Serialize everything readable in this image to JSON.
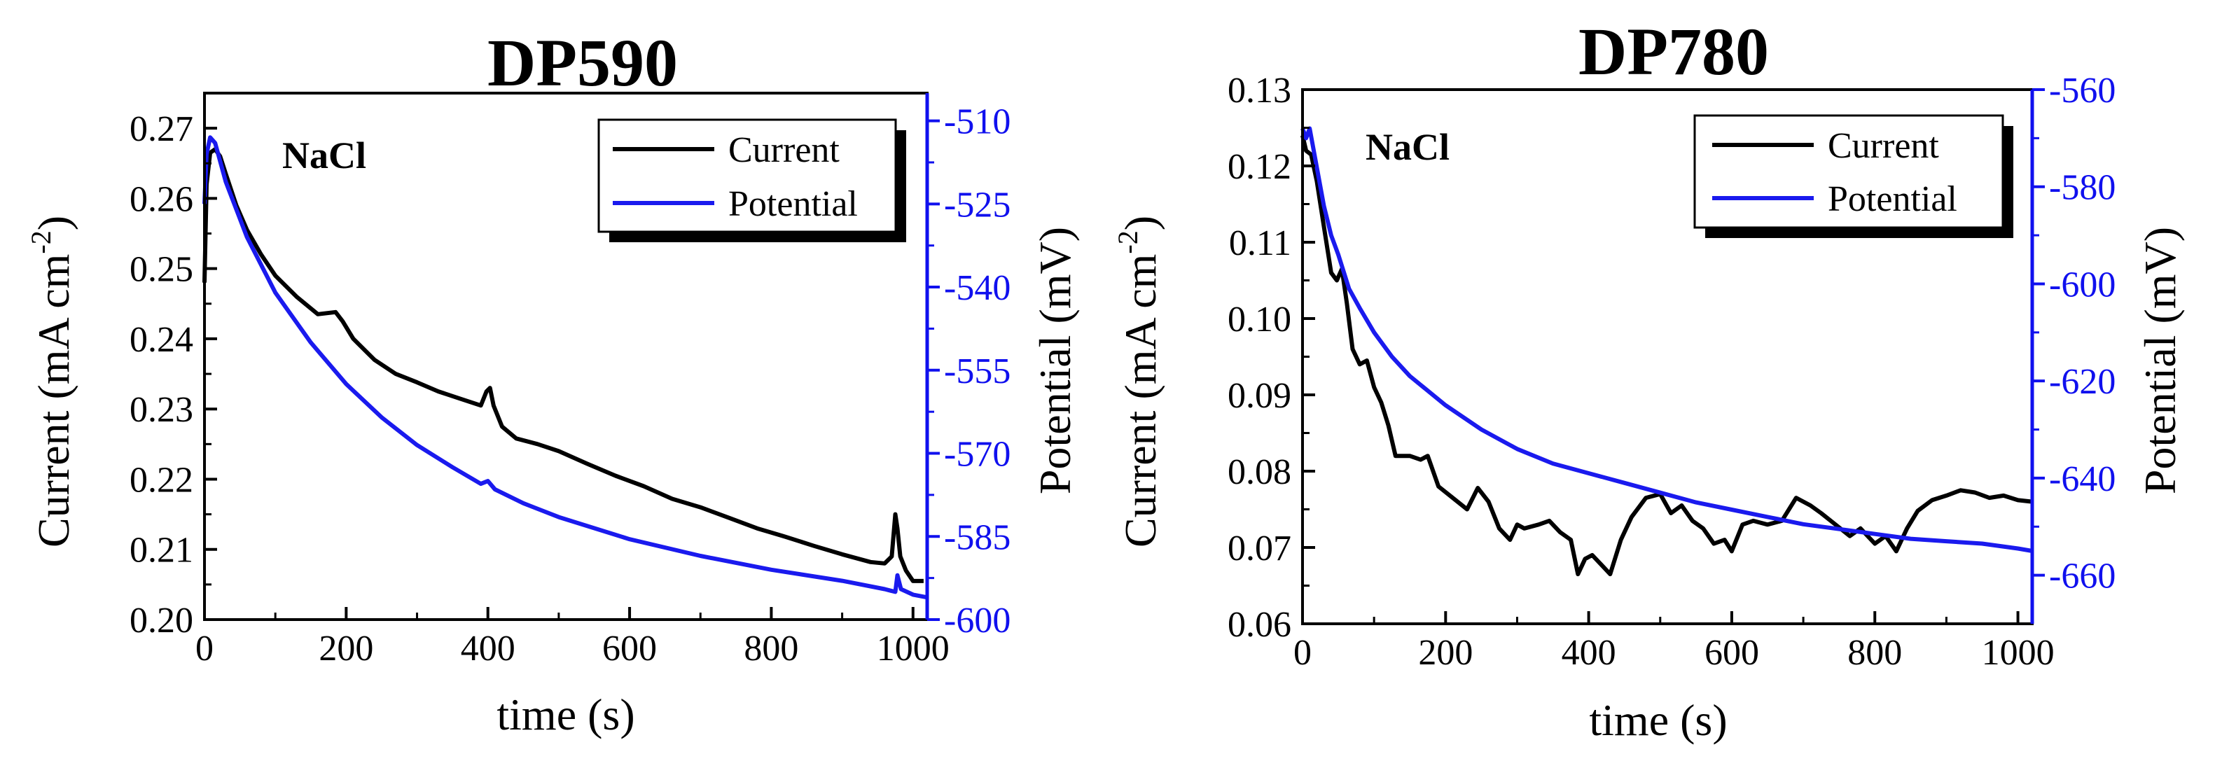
{
  "colors": {
    "current": "#000000",
    "potential": "#1a1aee",
    "right_axis": "#1010ee"
  },
  "chart_data": [
    {
      "type": "line",
      "title": "DP590",
      "annotation": "NaCl",
      "xlabel": "time (s)",
      "ylabel": "Current (mA cm",
      "ylabel_sup": "-2",
      "ylabel_end": ")",
      "y2label": "Potential (mV)",
      "xlim": [
        0,
        1020
      ],
      "ylim": [
        0.2,
        0.275
      ],
      "y2lim": [
        -600,
        -505
      ],
      "xticks": [
        "0",
        "200",
        "400",
        "600",
        "800",
        "1000"
      ],
      "xtick_values": [
        0,
        200,
        400,
        600,
        800,
        1000
      ],
      "yticks": [
        "0.20",
        "0.21",
        "0.22",
        "0.23",
        "0.24",
        "0.25",
        "0.26",
        "0.27"
      ],
      "ytick_values": [
        0.2,
        0.21,
        0.22,
        0.23,
        0.24,
        0.25,
        0.26,
        0.27
      ],
      "y2ticks": [
        "-510",
        "-525",
        "-540",
        "-555",
        "-570",
        "-585",
        "-600"
      ],
      "y2tick_values": [
        -510,
        -525,
        -540,
        -555,
        -570,
        -585,
        -600
      ],
      "legend": [
        "Current",
        "Potential"
      ],
      "series": [
        {
          "name": "Current",
          "axis": "left",
          "x": [
            0,
            3,
            8,
            15,
            22,
            30,
            45,
            60,
            80,
            100,
            130,
            160,
            185,
            195,
            210,
            240,
            270,
            300,
            330,
            360,
            390,
            398,
            403,
            408,
            420,
            440,
            470,
            500,
            540,
            580,
            620,
            660,
            700,
            740,
            780,
            820,
            860,
            900,
            940,
            960,
            970,
            975,
            978,
            982,
            990,
            1000,
            1015
          ],
          "values": [
            0.248,
            0.262,
            0.2665,
            0.267,
            0.266,
            0.2635,
            0.259,
            0.2555,
            0.252,
            0.249,
            0.246,
            0.2435,
            0.2438,
            0.2425,
            0.24,
            0.237,
            0.235,
            0.2338,
            0.2325,
            0.2315,
            0.2305,
            0.2325,
            0.233,
            0.2305,
            0.2275,
            0.2258,
            0.225,
            0.224,
            0.2222,
            0.2205,
            0.219,
            0.2172,
            0.216,
            0.2145,
            0.213,
            0.2118,
            0.2105,
            0.2093,
            0.2082,
            0.208,
            0.209,
            0.215,
            0.213,
            0.209,
            0.207,
            0.2055,
            0.2055
          ]
        },
        {
          "name": "Potential",
          "axis": "right",
          "x": [
            0,
            3,
            8,
            15,
            30,
            60,
            100,
            150,
            200,
            250,
            300,
            350,
            390,
            400,
            410,
            450,
            500,
            600,
            700,
            800,
            900,
            960,
            975,
            978,
            983,
            1000,
            1020
          ],
          "values": [
            -525,
            -516,
            -513,
            -514,
            -521,
            -531,
            -541,
            -550,
            -557.5,
            -563.5,
            -568.5,
            -572.5,
            -575.5,
            -575,
            -576.5,
            -579,
            -581.5,
            -585.5,
            -588.5,
            -591,
            -593,
            -594.5,
            -595,
            -592,
            -594.5,
            -595.5,
            -596
          ]
        }
      ]
    },
    {
      "type": "line",
      "title": "DP780",
      "annotation": "NaCl",
      "xlabel": "time (s)",
      "ylabel": "Current (mA cm",
      "ylabel_sup": "-2",
      "ylabel_end": ")",
      "y2label": "Potential (mV)",
      "xlim": [
        0,
        1020
      ],
      "ylim": [
        0.06,
        0.13
      ],
      "y2lim": [
        -670,
        -560
      ],
      "xticks": [
        "0",
        "200",
        "400",
        "600",
        "800",
        "1000"
      ],
      "xtick_values": [
        0,
        200,
        400,
        600,
        800,
        1000
      ],
      "yticks": [
        "0.06",
        "0.07",
        "0.08",
        "0.09",
        "0.10",
        "0.11",
        "0.12",
        "0.13"
      ],
      "ytick_values": [
        0.06,
        0.07,
        0.08,
        0.09,
        0.1,
        0.11,
        0.12,
        0.13
      ],
      "y2ticks": [
        "-560",
        "-580",
        "-600",
        "-620",
        "-640",
        "-660"
      ],
      "y2tick_values": [
        -560,
        -580,
        -600,
        -620,
        -640,
        -660
      ],
      "legend": [
        "Current",
        "Potential"
      ],
      "series": [
        {
          "name": "Current",
          "axis": "left",
          "x": [
            0,
            5,
            12,
            20,
            30,
            40,
            48,
            55,
            62,
            70,
            80,
            90,
            100,
            110,
            120,
            130,
            150,
            165,
            175,
            190,
            210,
            230,
            245,
            260,
            275,
            290,
            300,
            310,
            330,
            345,
            360,
            375,
            385,
            395,
            405,
            420,
            430,
            445,
            460,
            480,
            500,
            515,
            530,
            545,
            560,
            575,
            590,
            600,
            615,
            630,
            650,
            670,
            690,
            710,
            725,
            745,
            765,
            780,
            800,
            815,
            830,
            845,
            860,
            880,
            900,
            920,
            940,
            960,
            980,
            1000,
            1020
          ],
          "values": [
            0.124,
            0.122,
            0.1215,
            0.118,
            0.112,
            0.106,
            0.105,
            0.1065,
            0.102,
            0.096,
            0.094,
            0.0945,
            0.091,
            0.089,
            0.086,
            0.082,
            0.082,
            0.0815,
            0.082,
            0.078,
            0.0765,
            0.075,
            0.0778,
            0.076,
            0.0725,
            0.071,
            0.073,
            0.0725,
            0.073,
            0.0735,
            0.072,
            0.071,
            0.0665,
            0.0685,
            0.069,
            0.0675,
            0.0665,
            0.071,
            0.074,
            0.0765,
            0.077,
            0.0745,
            0.0755,
            0.0735,
            0.0725,
            0.0705,
            0.071,
            0.0695,
            0.073,
            0.0735,
            0.073,
            0.0735,
            0.0765,
            0.0755,
            0.0745,
            0.073,
            0.0715,
            0.0725,
            0.0705,
            0.0715,
            0.0695,
            0.0725,
            0.0748,
            0.0762,
            0.0768,
            0.0775,
            0.0772,
            0.0765,
            0.0768,
            0.0762,
            0.076
          ]
        },
        {
          "name": "Potential",
          "axis": "right",
          "x": [
            0,
            5,
            10,
            20,
            30,
            40,
            50,
            65,
            80,
            100,
            125,
            150,
            200,
            250,
            300,
            350,
            400,
            450,
            500,
            550,
            600,
            650,
            700,
            750,
            800,
            850,
            900,
            950,
            1000,
            1020
          ],
          "values": [
            -568,
            -570,
            -568,
            -576,
            -584,
            -590,
            -594,
            -601,
            -605,
            -610,
            -615,
            -619,
            -625,
            -630,
            -634,
            -637,
            -639,
            -641,
            -643,
            -645,
            -646.5,
            -648,
            -649.5,
            -650.5,
            -651.5,
            -652.5,
            -653,
            -653.5,
            -654.5,
            -655
          ]
        }
      ]
    }
  ]
}
